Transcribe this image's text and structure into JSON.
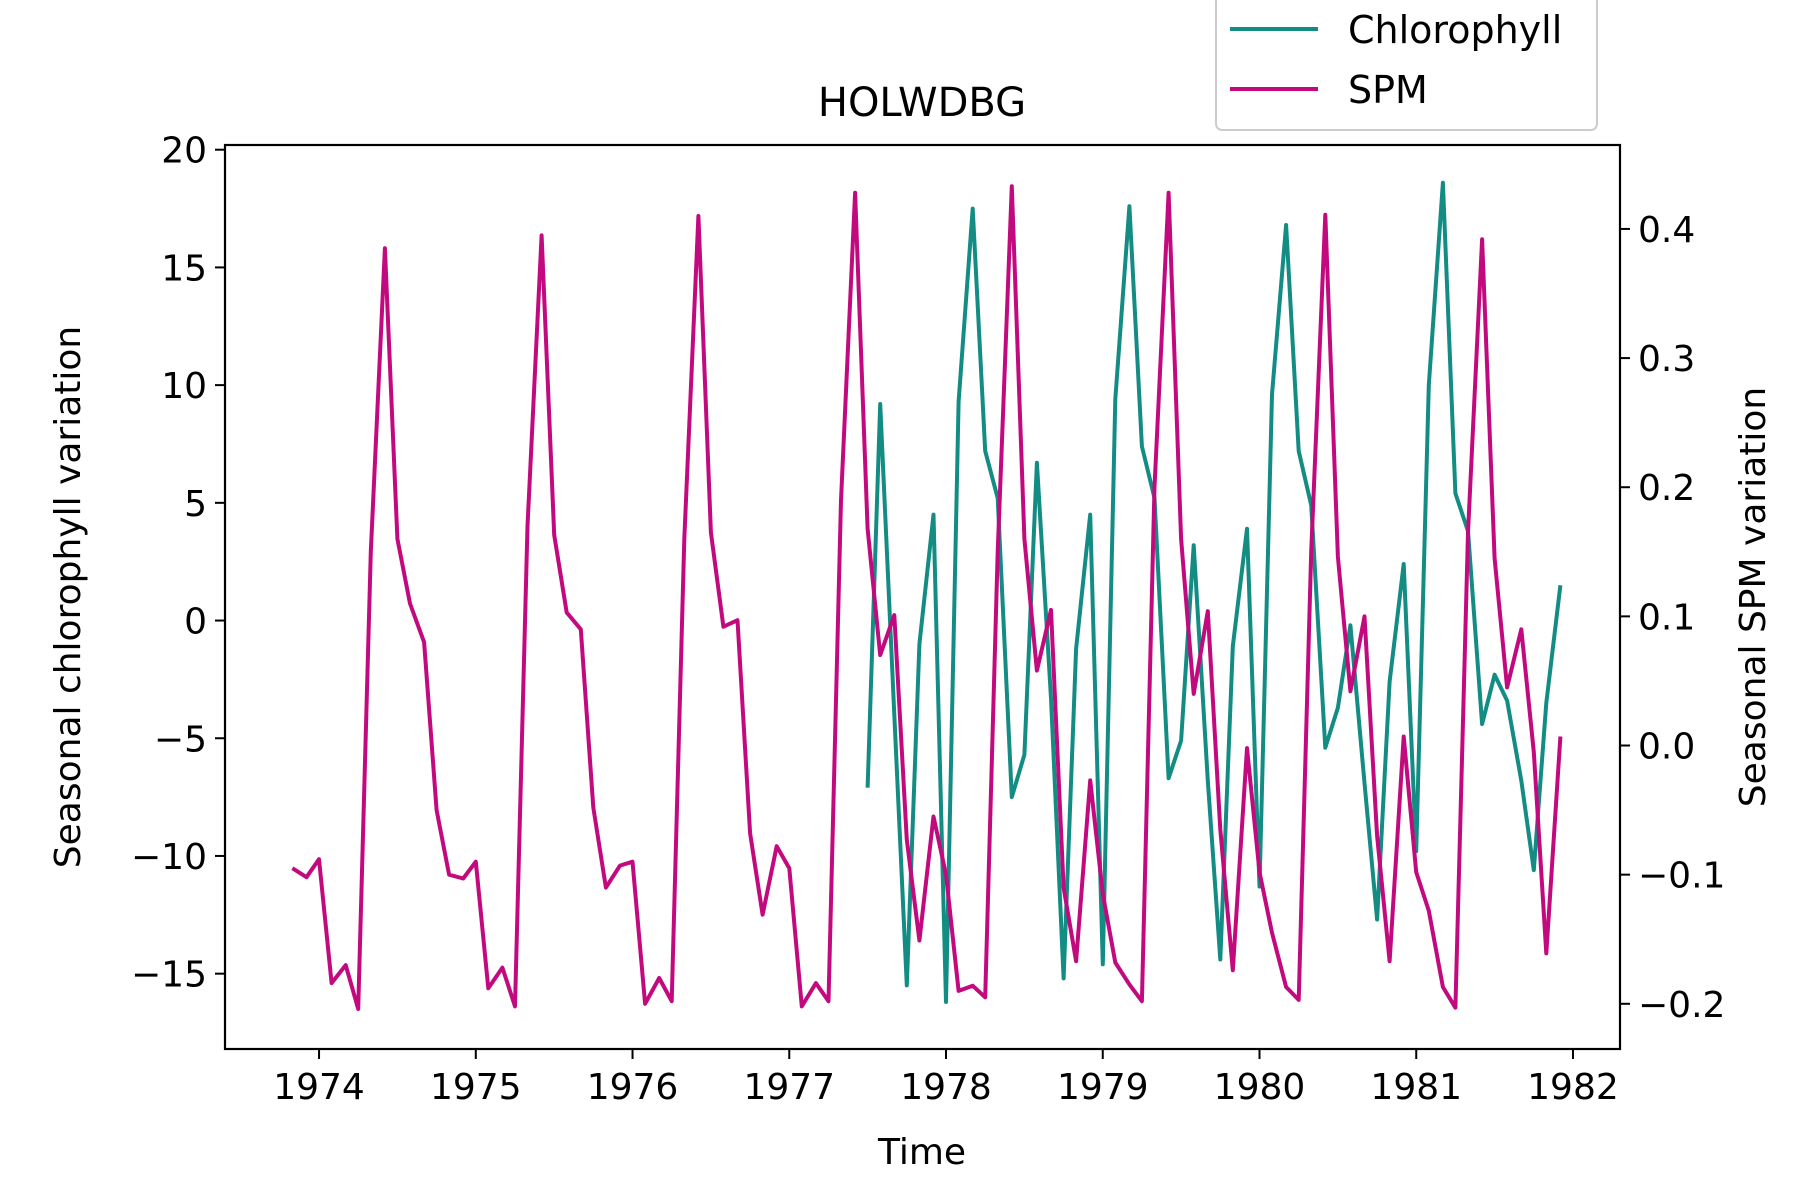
{
  "chart_data": {
    "type": "line",
    "title": "HOLWDBG",
    "xlabel": "Time",
    "ylabel_left": "Seasonal chlorophyll variation",
    "ylabel_right": "Seasonal SPM variation",
    "xlim": [
      1973.4,
      1982.3
    ],
    "xticks": [
      1974,
      1975,
      1976,
      1977,
      1978,
      1979,
      1980,
      1981,
      1982
    ],
    "ylim_left": [
      -18.2,
      20.2
    ],
    "yticks_left": [
      20,
      15,
      10,
      5,
      0,
      -5,
      -10,
      -15
    ],
    "yticks_left_labels": [
      "20",
      "15",
      "10",
      "5",
      "0",
      "−5",
      "−10",
      "−15"
    ],
    "ylim_right": [
      -0.235,
      0.465
    ],
    "yticks_right": [
      0.4,
      0.3,
      0.2,
      0.1,
      0.0,
      -0.1,
      -0.2
    ],
    "yticks_right_labels": [
      "0.4",
      "0.3",
      "0.2",
      "0.1",
      "0.0",
      "−0.1",
      "−0.2"
    ],
    "legend_position": "upper-right, above plot",
    "grid": false,
    "series": [
      {
        "name": "Chlorophyll",
        "axis": "left",
        "color": "#138d84",
        "x": [
          1977.5,
          1977.58,
          1977.67,
          1977.75,
          1977.83,
          1977.92,
          1978.0,
          1978.08,
          1978.17,
          1978.25,
          1978.33,
          1978.42,
          1978.5,
          1978.58,
          1978.67,
          1978.75,
          1978.83,
          1978.92,
          1979.0,
          1979.08,
          1979.17,
          1979.25,
          1979.33,
          1979.42,
          1979.5,
          1979.58,
          1979.67,
          1979.75,
          1979.83,
          1979.92,
          1980.0,
          1980.08,
          1980.17,
          1980.25,
          1980.33,
          1980.42,
          1980.5,
          1980.58,
          1980.67,
          1980.75,
          1980.83,
          1980.92,
          1981.0,
          1981.08,
          1981.17,
          1981.25,
          1981.33,
          1981.42,
          1981.5,
          1981.58,
          1981.67,
          1981.75,
          1981.83,
          1981.92
        ],
        "y": [
          -7.1,
          9.2,
          -4.0,
          -15.5,
          -1.0,
          4.5,
          -16.2,
          9.3,
          17.5,
          7.2,
          5.2,
          -7.5,
          -5.7,
          6.7,
          -3.3,
          -15.2,
          -1.2,
          4.5,
          -14.6,
          9.4,
          17.6,
          7.4,
          5.2,
          -6.7,
          -5.1,
          3.2,
          -6.8,
          -14.4,
          -1.1,
          3.9,
          -11.3,
          9.6,
          16.8,
          7.2,
          4.9,
          -5.4,
          -3.7,
          -0.2,
          -6.9,
          -12.7,
          -2.6,
          2.4,
          -9.8,
          10.0,
          18.6,
          5.4,
          3.8,
          -4.4,
          -2.3,
          -3.4,
          -6.8,
          -10.6,
          -3.5,
          1.5
        ]
      },
      {
        "name": "SPM",
        "axis": "right",
        "color": "#c20a7e",
        "x": [
          1973.83,
          1973.92,
          1974.0,
          1974.08,
          1974.17,
          1974.25,
          1974.33,
          1974.42,
          1974.5,
          1974.58,
          1974.67,
          1974.75,
          1974.83,
          1974.92,
          1975.0,
          1975.08,
          1975.17,
          1975.25,
          1975.33,
          1975.42,
          1975.5,
          1975.58,
          1975.67,
          1975.75,
          1975.83,
          1975.92,
          1976.0,
          1976.08,
          1976.17,
          1976.25,
          1976.33,
          1976.42,
          1976.5,
          1976.58,
          1976.67,
          1976.75,
          1976.83,
          1976.92,
          1977.0,
          1977.08,
          1977.17,
          1977.25,
          1977.33,
          1977.42,
          1977.5,
          1977.58,
          1977.67,
          1977.75,
          1977.83,
          1977.92,
          1978.0,
          1978.08,
          1978.17,
          1978.25,
          1978.33,
          1978.42,
          1978.5,
          1978.58,
          1978.67,
          1978.75,
          1978.83,
          1978.92,
          1979.0,
          1979.08,
          1979.17,
          1979.25,
          1979.33,
          1979.42,
          1979.5,
          1979.58,
          1979.67,
          1979.75,
          1979.83,
          1979.92,
          1980.0,
          1980.08,
          1980.17,
          1980.25,
          1980.33,
          1980.42,
          1980.5,
          1980.58,
          1980.67,
          1980.75,
          1980.83,
          1980.92,
          1981.0,
          1981.08,
          1981.17,
          1981.25,
          1981.33,
          1981.42,
          1981.5,
          1981.58,
          1981.67,
          1981.75,
          1981.83,
          1981.92
        ],
        "y": [
          -0.095,
          -0.102,
          -0.088,
          -0.184,
          -0.17,
          -0.204,
          0.15,
          0.385,
          0.16,
          0.11,
          0.08,
          -0.05,
          -0.1,
          -0.103,
          -0.09,
          -0.188,
          -0.172,
          -0.202,
          0.17,
          0.395,
          0.163,
          0.103,
          0.09,
          -0.048,
          -0.11,
          -0.093,
          -0.09,
          -0.2,
          -0.18,
          -0.198,
          0.16,
          0.41,
          0.165,
          0.092,
          0.097,
          -0.068,
          -0.131,
          -0.078,
          -0.095,
          -0.202,
          -0.184,
          -0.198,
          0.19,
          0.428,
          0.168,
          0.07,
          0.101,
          -0.073,
          -0.151,
          -0.055,
          -0.1,
          -0.19,
          -0.186,
          -0.195,
          0.15,
          0.433,
          0.16,
          0.058,
          0.105,
          -0.11,
          -0.167,
          -0.027,
          -0.115,
          -0.168,
          -0.185,
          -0.198,
          0.2,
          0.428,
          0.16,
          0.04,
          0.104,
          -0.065,
          -0.174,
          -0.002,
          -0.098,
          -0.145,
          -0.187,
          -0.197,
          0.15,
          0.411,
          0.146,
          0.042,
          0.1,
          -0.07,
          -0.167,
          0.007,
          -0.098,
          -0.128,
          -0.187,
          -0.203,
          0.165,
          0.392,
          0.145,
          0.045,
          0.09,
          -0.005,
          -0.161,
          0.007
        ]
      }
    ]
  }
}
